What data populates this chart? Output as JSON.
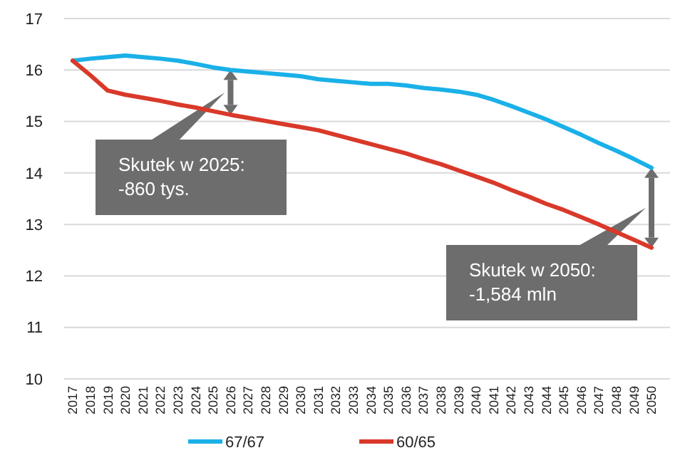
{
  "chart_data": {
    "type": "line",
    "categories": [
      "2017",
      "2018",
      "2019",
      "2020",
      "2021",
      "2022",
      "2023",
      "2024",
      "2025",
      "2026",
      "2027",
      "2028",
      "2029",
      "2030",
      "2031",
      "2032",
      "2033",
      "2034",
      "2035",
      "2036",
      "2037",
      "2038",
      "2039",
      "2040",
      "2041",
      "2042",
      "2043",
      "2044",
      "2045",
      "2046",
      "2047",
      "2048",
      "2049",
      "2050"
    ],
    "series": [
      {
        "name": "67/67",
        "color": "#1ab0e8",
        "values": [
          16.18,
          16.22,
          16.25,
          16.28,
          16.25,
          16.22,
          16.18,
          16.12,
          16.05,
          16.0,
          15.97,
          15.94,
          15.91,
          15.88,
          15.82,
          15.79,
          15.76,
          15.73,
          15.73,
          15.7,
          15.65,
          15.62,
          15.58,
          15.52,
          15.42,
          15.3,
          15.17,
          15.04,
          14.89,
          14.74,
          14.58,
          14.43,
          14.27,
          14.1
        ]
      },
      {
        "name": "60/65",
        "color": "#d9392a",
        "values": [
          16.18,
          15.9,
          15.6,
          15.52,
          15.46,
          15.4,
          15.33,
          15.27,
          15.2,
          15.13,
          15.07,
          15.01,
          14.95,
          14.89,
          14.83,
          14.74,
          14.65,
          14.56,
          14.47,
          14.38,
          14.27,
          14.17,
          14.05,
          13.93,
          13.81,
          13.67,
          13.54,
          13.4,
          13.28,
          13.14,
          13.0,
          12.85,
          12.7,
          12.55
        ]
      }
    ],
    "ylim": [
      10,
      17
    ],
    "yticks": [
      10,
      11,
      12,
      13,
      14,
      15,
      16,
      17
    ],
    "grid": "y",
    "legend": "bottom",
    "marker": "none",
    "line_style": "solid",
    "annotations": [
      "Skutek w 2025:\n-860 tys.",
      "Skutek w 2050:\n-1,584 mln"
    ]
  }
}
